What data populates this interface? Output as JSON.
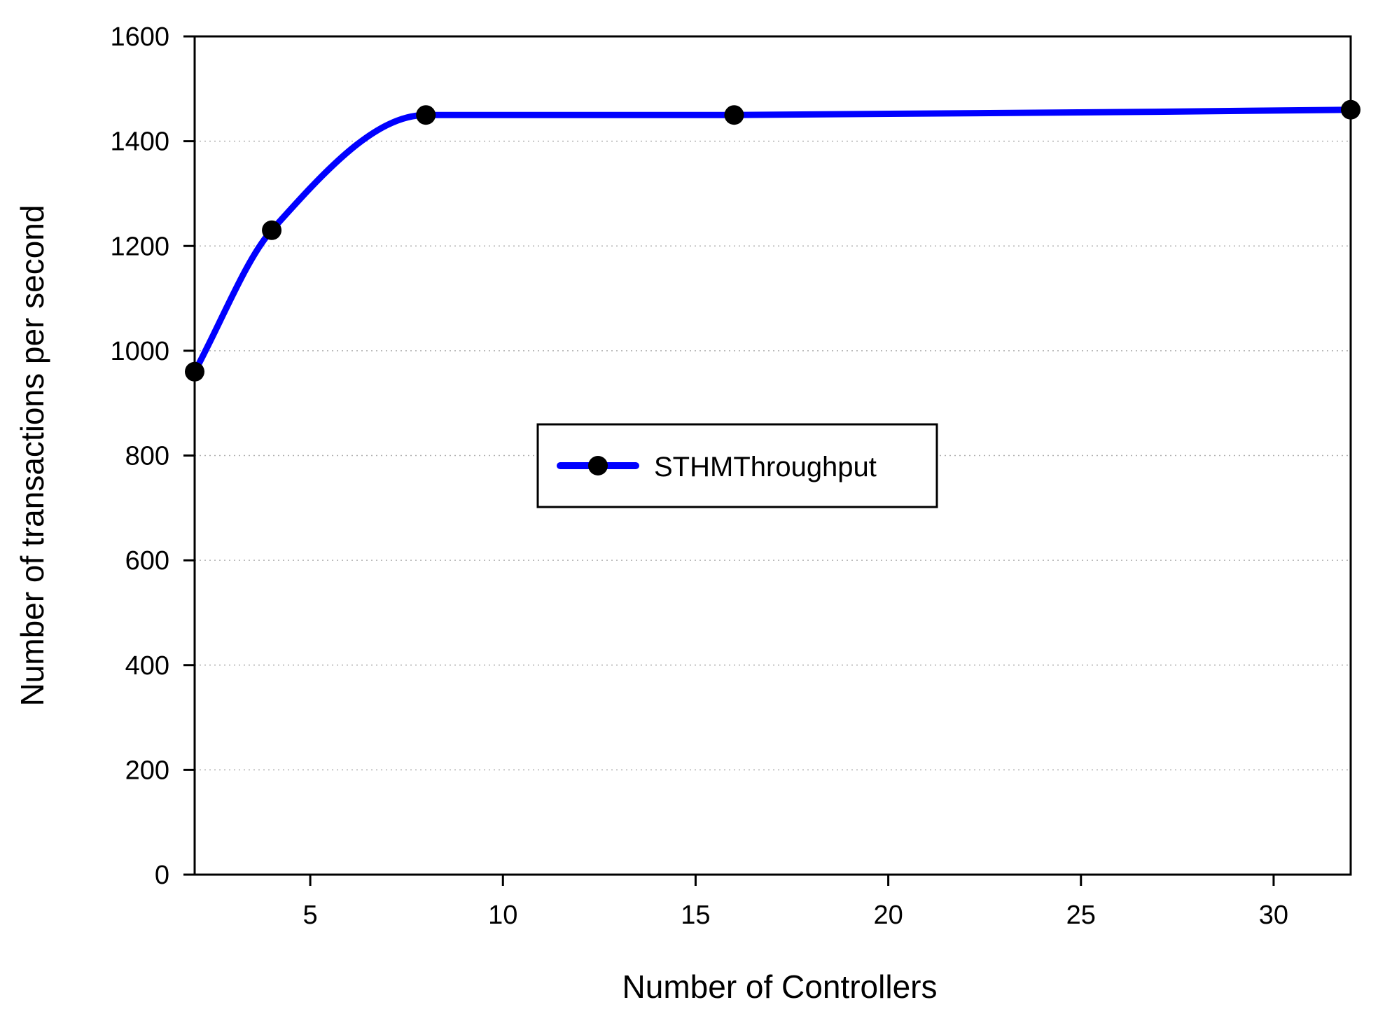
{
  "chart_data": {
    "type": "line",
    "xlabel": "Number of Controllers",
    "ylabel": "Number of transactions per second",
    "xlim": [
      2,
      32
    ],
    "ylim": [
      0,
      1600
    ],
    "xticks": [
      5,
      10,
      15,
      20,
      25,
      30
    ],
    "xtick_labels": [
      "5",
      "10",
      "15",
      "20",
      "25",
      "30"
    ],
    "yticks": [
      0,
      200,
      400,
      600,
      800,
      1000,
      1200,
      1400,
      1600
    ],
    "ytick_labels": [
      "0",
      "200",
      "400",
      "600",
      "800",
      "1000",
      "1200",
      "1400",
      "1600"
    ],
    "grid": "horizontal-dotted",
    "legend_position": "center",
    "line_style": "smooth",
    "series": [
      {
        "name": "STHMThroughput",
        "color": "#0000ff",
        "marker": "filled-circle",
        "marker_color": "#000000",
        "x": [
          2,
          4,
          8,
          16,
          32
        ],
        "y": [
          960,
          1230,
          1450,
          1450,
          1460
        ]
      }
    ]
  }
}
